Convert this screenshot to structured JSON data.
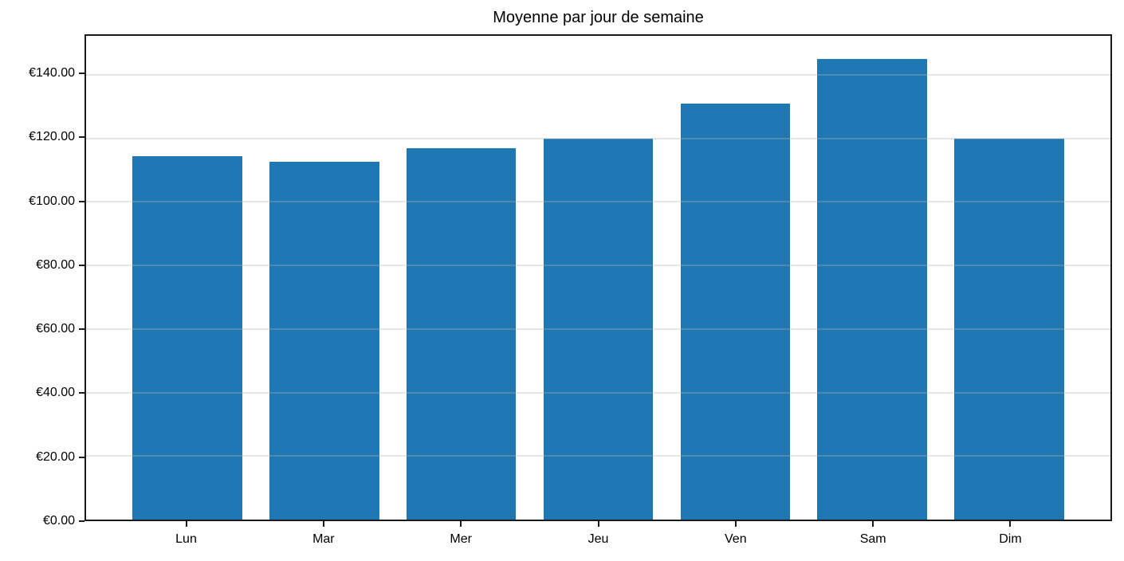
{
  "chart_data": {
    "type": "bar",
    "title": "Moyenne par jour de semaine",
    "categories": [
      "Lun",
      "Mar",
      "Mer",
      "Jeu",
      "Ven",
      "Sam",
      "Dim"
    ],
    "values": [
      114.5,
      112.5,
      117,
      120,
      131,
      145,
      120
    ],
    "xlabel": "",
    "ylabel": "",
    "ylim": [
      0,
      152.25
    ],
    "yticks": [
      0,
      20,
      40,
      60,
      80,
      100,
      120,
      140
    ],
    "ytick_labels": [
      "€0.00",
      "€20.00",
      "€40.00",
      "€60.00",
      "€80.00",
      "€100.00",
      "€120.00",
      "€140.00"
    ],
    "bar_color": "#1f77b4",
    "grid": "horizontal",
    "grid_above_bars": true,
    "legend": "none",
    "background_color": "#ffffff",
    "spine_color": "#1a1a1a"
  }
}
